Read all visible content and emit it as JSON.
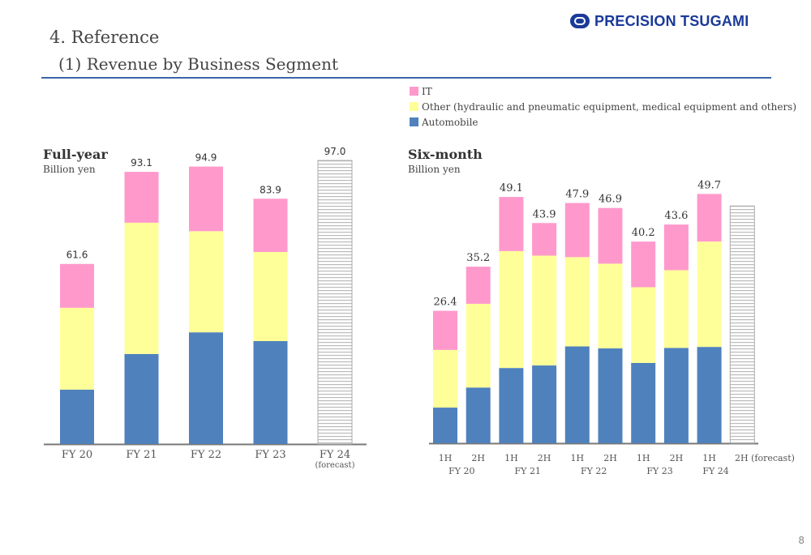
{
  "header": {
    "logo_text": "PRECISION TSUGAMI",
    "section_title": "4. Reference",
    "subsection_title": "(1) Revenue by Business Segment"
  },
  "legend": [
    {
      "label": "IT",
      "color": "#ff99cc"
    },
    {
      "label": "Other (hydraulic and pneumatic equipment, medical equipment and others)",
      "color": "#ffff99"
    },
    {
      "label": "Automobile",
      "color": "#4f81bd"
    }
  ],
  "page_number": "8",
  "chart_data": [
    {
      "type": "bar",
      "stacked": true,
      "title": "Full-year",
      "ylabel": "Billion yen",
      "xlabel": "",
      "categories": [
        "FY 20",
        "FY 21",
        "FY 22",
        "FY 23",
        "FY 24"
      ],
      "category_sublabels": [
        "",
        "",
        "",
        "",
        "(forecast)"
      ],
      "ylim": [
        0,
        97
      ],
      "grid": false,
      "series": [
        {
          "name": "Automobile",
          "color": "#4f81bd",
          "values": [
            18.6,
            30.8,
            38.2,
            35.2,
            null
          ]
        },
        {
          "name": "Other (hydraulic and pneumatic equipment, medical equipment and others)",
          "color": "#ffff99",
          "values": [
            28.0,
            44.9,
            34.6,
            30.5,
            null
          ]
        },
        {
          "name": "IT",
          "color": "#ff99cc",
          "values": [
            15.0,
            17.4,
            22.1,
            18.2,
            null
          ]
        }
      ],
      "forecast": {
        "category": "FY 24",
        "total": 97.0
      },
      "totals": [
        "61.6",
        "93.1",
        "94.9",
        "83.9",
        "97.0"
      ]
    },
    {
      "type": "bar",
      "stacked": true,
      "title": "Six-month",
      "ylabel": "Billion yen",
      "xlabel": "",
      "categories": [
        "1H",
        "2H",
        "1H",
        "2H",
        "1H",
        "2H",
        "1H",
        "2H",
        "1H",
        "2H (forecast)"
      ],
      "groups": [
        {
          "label": "FY 20",
          "span": [
            0,
            1
          ]
        },
        {
          "label": "FY 21",
          "span": [
            2,
            3
          ]
        },
        {
          "label": "FY 22",
          "span": [
            4,
            5
          ]
        },
        {
          "label": "FY 23",
          "span": [
            6,
            7
          ]
        },
        {
          "label": "FY 24",
          "span": [
            8,
            9
          ]
        }
      ],
      "ylim": [
        0,
        49.7
      ],
      "grid": false,
      "series": [
        {
          "name": "Automobile",
          "color": "#4f81bd",
          "values": [
            7.1,
            11.1,
            15.0,
            15.5,
            19.3,
            18.9,
            16.0,
            19.0,
            19.2,
            null
          ]
        },
        {
          "name": "Other (hydraulic and pneumatic equipment, medical equipment and others)",
          "color": "#ffff99",
          "values": [
            11.5,
            16.7,
            23.3,
            21.9,
            17.8,
            16.9,
            15.1,
            15.5,
            21.0,
            null
          ]
        },
        {
          "name": "IT",
          "color": "#ff99cc",
          "values": [
            7.8,
            7.4,
            10.8,
            6.5,
            10.8,
            11.1,
            9.1,
            9.1,
            9.5,
            null
          ]
        }
      ],
      "forecast": {
        "category": "2H (forecast)",
        "total": 47.3
      },
      "totals": [
        "26.4",
        "35.2",
        "49.1",
        "43.9",
        "47.9",
        "46.9",
        "40.2",
        "43.6",
        "49.7",
        ""
      ]
    }
  ]
}
